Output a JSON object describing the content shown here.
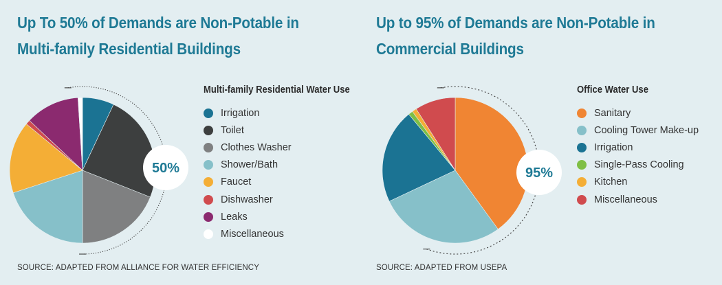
{
  "chart_data": [
    {
      "type": "pie",
      "title": "Up To 50% of Demands are Non-Potable in Multi-family Residential Buildings",
      "legend_title": "Multi-family Residential Water Use",
      "legend_position": "right",
      "callout": "50%",
      "source": "SOURCE: ADAPTED FROM ALLIANCE FOR WATER EFFICIENCY",
      "slices": [
        {
          "label": "Irrigation",
          "value": 7,
          "color": "#1b7393"
        },
        {
          "label": "Toilet",
          "value": 24,
          "color": "#3d3f3f"
        },
        {
          "label": "Clothes Washer",
          "value": 19,
          "color": "#7f8081"
        },
        {
          "label": "Shower/Bath",
          "value": 20,
          "color": "#86c0c9"
        },
        {
          "label": "Faucet",
          "value": 16,
          "color": "#f4ae36"
        },
        {
          "label": "Dishwasher",
          "value": 1,
          "color": "#d04b4e"
        },
        {
          "label": "Leaks",
          "value": 12,
          "color": "#8b2a6f"
        },
        {
          "label": "Miscellaneous",
          "value": 1,
          "color": "#ffffff"
        }
      ]
    },
    {
      "type": "pie",
      "title": "Up to 95% of Demands are Non-Potable in Commercial Buildings",
      "legend_title": "Office Water Use",
      "legend_position": "right",
      "callout": "95%",
      "source": "SOURCE: ADAPTED FROM USEPA",
      "slices": [
        {
          "label": "Sanitary",
          "value": 40,
          "color": "#f08533"
        },
        {
          "label": "Cooling Tower Make-up",
          "value": 28,
          "color": "#86c0c9"
        },
        {
          "label": "Irrigation",
          "value": 21,
          "color": "#1b7393"
        },
        {
          "label": "Single-Pass Cooling",
          "value": 1,
          "color": "#7fbf45"
        },
        {
          "label": "Kitchen",
          "value": 1,
          "color": "#f4ae36"
        },
        {
          "label": "Miscellaneous",
          "value": 9,
          "color": "#d04b4e"
        }
      ]
    }
  ]
}
